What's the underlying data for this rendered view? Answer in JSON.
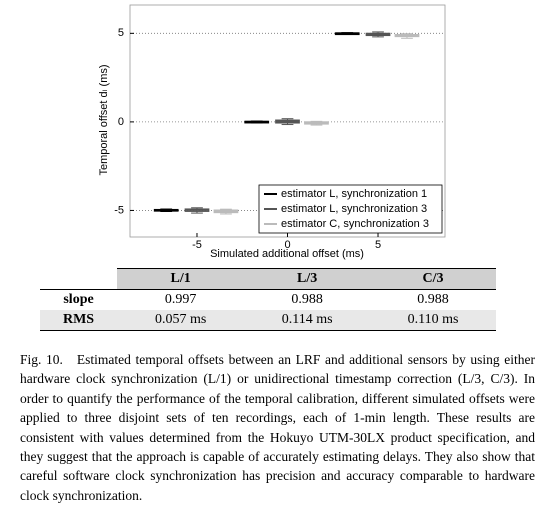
{
  "chart_data": {
    "type": "box",
    "ylabel": "Temporal offset dₗ (ms)",
    "xlabel": "Simulated additional offset (ms)",
    "x": [
      -5,
      0,
      5
    ],
    "xlim": [
      -8.7,
      8.7
    ],
    "xticks": [
      -5,
      0,
      5
    ],
    "ylim": [
      -6.5,
      6.6
    ],
    "yticks": [
      -5,
      0,
      5
    ],
    "grid": true,
    "legend": "lower right",
    "series": [
      {
        "name": "estimator L, synchronization 1",
        "color": "#000000",
        "median": [
          -4.98,
          0.0,
          5.0
        ],
        "q1": [
          -5.03,
          -0.04,
          4.97
        ],
        "q3": [
          -4.95,
          0.03,
          5.02
        ],
        "whisker_low": [
          -5.06,
          -0.06,
          4.95
        ],
        "whisker_high": [
          -4.92,
          0.05,
          5.04
        ]
      },
      {
        "name": "estimator L, synchronization 3",
        "color": "#555555",
        "median": [
          -4.97,
          0.02,
          4.95
        ],
        "q1": [
          -5.05,
          -0.06,
          4.88
        ],
        "q3": [
          -4.92,
          0.1,
          5.0
        ],
        "whisker_low": [
          -5.15,
          -0.15,
          4.8
        ],
        "whisker_high": [
          -4.85,
          0.18,
          5.08
        ]
      },
      {
        "name": "estimator C, synchronization 3",
        "color": "#bbbbbb",
        "median": [
          -5.05,
          -0.05,
          4.88
        ],
        "q1": [
          -5.12,
          -0.12,
          4.82
        ],
        "q3": [
          -4.98,
          0.0,
          4.93
        ],
        "whisker_low": [
          -5.2,
          -0.18,
          4.72
        ],
        "whisker_high": [
          -4.93,
          0.03,
          4.98
        ]
      }
    ]
  },
  "table": {
    "header": [
      "L/1",
      "L/3",
      "C/3"
    ],
    "rows": [
      [
        "slope",
        "0.997",
        "0.988",
        "0.988"
      ],
      [
        "RMS",
        "0.057 ms",
        "0.114 ms",
        "0.110 ms"
      ]
    ]
  },
  "caption": {
    "label": "Fig. 10.",
    "text": "Estimated temporal offsets between an LRF and additional sensors by using either hardware clock synchronization (L/1) or unidirectional timestamp correction (L/3, C/3). In order to quantify the performance of the temporal calibration, different simulated offsets were applied to three disjoint sets of ten recordings, each of 1-min length. These results are consistent with values determined from the Hokuyo UTM-30LX product specification, and they suggest that the approach is capable of accurately estimating delays. They also show that careful software clock synchronization has precision and accuracy comparable to hardware clock synchronization."
  }
}
